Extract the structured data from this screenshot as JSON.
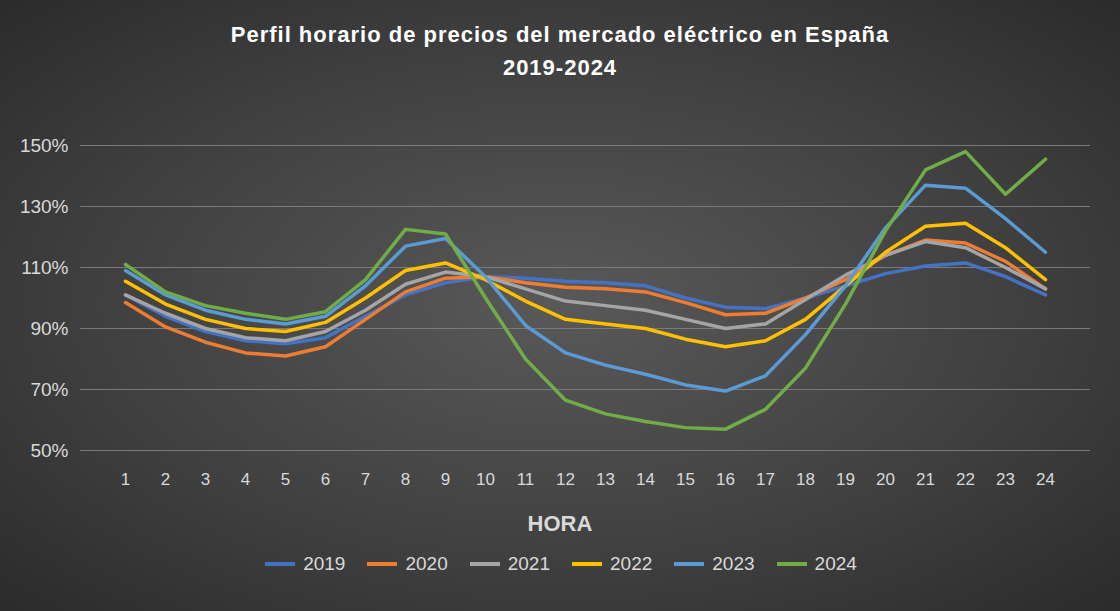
{
  "chart_data": {
    "type": "line",
    "title": "Perfil horario de precios del mercado eléctrico en España",
    "subtitle": "2019-2024",
    "x_label": "HORA",
    "categories": [
      "1",
      "2",
      "3",
      "4",
      "5",
      "6",
      "7",
      "8",
      "9",
      "10",
      "11",
      "12",
      "13",
      "14",
      "15",
      "16",
      "17",
      "18",
      "19",
      "20",
      "21",
      "22",
      "23",
      "24"
    ],
    "series": [
      {
        "name": "2019",
        "color": "#4472C4",
        "values": [
          101,
          94,
          89,
          86,
          85,
          87,
          94,
          101,
          105,
          107,
          106.5,
          105.5,
          105,
          104,
          100,
          97,
          96.5,
          100,
          104,
          108,
          110.5,
          111.5,
          107,
          101
        ]
      },
      {
        "name": "2020",
        "color": "#ED7D31",
        "values": [
          98.5,
          90.5,
          85.5,
          82,
          81,
          84,
          93,
          102,
          106.5,
          107,
          105,
          103.5,
          103,
          102,
          98.5,
          94.5,
          95,
          100,
          106,
          114,
          119,
          118,
          112,
          103
        ]
      },
      {
        "name": "2021",
        "color": "#A5A5A5",
        "values": [
          101,
          95,
          90,
          87,
          86,
          89,
          96,
          104.5,
          108.5,
          107,
          103,
          99,
          97.5,
          96,
          93,
          90,
          91.5,
          99.5,
          107.5,
          114,
          118.5,
          116.5,
          110,
          103
        ]
      },
      {
        "name": "2022",
        "color": "#FFC000",
        "values": [
          105.5,
          98,
          93,
          90,
          89,
          92,
          100,
          109,
          111.5,
          106,
          99,
          93,
          91.5,
          90,
          86.5,
          84,
          86,
          93,
          104,
          115,
          123.5,
          124.5,
          116.5,
          106
        ]
      },
      {
        "name": "2023",
        "color": "#5B9BD5",
        "values": [
          109,
          101,
          96,
          93,
          91.5,
          94,
          104,
          117,
          119.5,
          107,
          91,
          82,
          78,
          75,
          71.5,
          69.5,
          74.5,
          88,
          104,
          123,
          137,
          136,
          126,
          115
        ]
      },
      {
        "name": "2024",
        "color": "#70AD47",
        "values": [
          111,
          102,
          97.5,
          95,
          93,
          95.5,
          106,
          122.5,
          121,
          100,
          80,
          66.5,
          62,
          59.5,
          57.5,
          57,
          63.5,
          77,
          98,
          122,
          142,
          148,
          134,
          145.5
        ]
      }
    ],
    "ylim": [
      50,
      150
    ],
    "yticks": [
      {
        "value": 50,
        "label": "50%"
      },
      {
        "value": 70,
        "label": "70%"
      },
      {
        "value": 90,
        "label": "90%"
      },
      {
        "value": 110,
        "label": "110%"
      },
      {
        "value": 130,
        "label": "130%"
      },
      {
        "value": 150,
        "label": "150%"
      }
    ],
    "grid": true,
    "legend": "bottom"
  }
}
